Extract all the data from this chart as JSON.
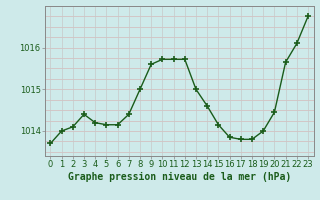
{
  "x": [
    0,
    1,
    2,
    3,
    4,
    5,
    6,
    7,
    8,
    9,
    10,
    11,
    12,
    13,
    14,
    15,
    16,
    17,
    18,
    19,
    20,
    21,
    22,
    23
  ],
  "y": [
    1013.7,
    1014.0,
    1014.1,
    1014.4,
    1014.2,
    1014.15,
    1014.15,
    1014.4,
    1015.0,
    1015.6,
    1015.72,
    1015.72,
    1015.72,
    1015.0,
    1014.6,
    1014.15,
    1013.85,
    1013.8,
    1013.8,
    1014.0,
    1014.45,
    1015.65,
    1016.1,
    1016.75
  ],
  "line_color": "#1a5c1a",
  "marker": "+",
  "markersize": 4,
  "linewidth": 1.0,
  "bg_color": "#ceeaea",
  "grid_color_h": "#d4b8b8",
  "grid_color_v": "#c8c8c8",
  "xlabel": "Graphe pression niveau de la mer (hPa)",
  "xlabel_fontsize": 7,
  "ylabel_ticks": [
    1014,
    1015,
    1016
  ],
  "ylim": [
    1013.4,
    1017.0
  ],
  "xlim": [
    -0.5,
    23.5
  ],
  "tick_fontsize": 6,
  "tick_color": "#1a5c1a",
  "spine_color": "#888888"
}
